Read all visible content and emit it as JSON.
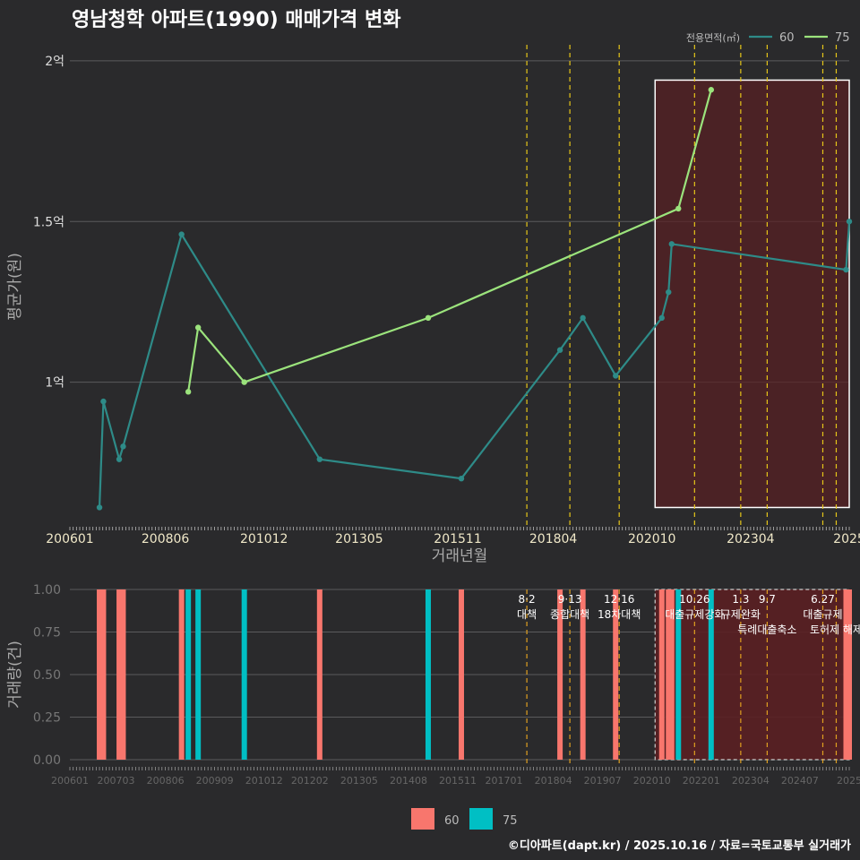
{
  "title": "영남청학 아파트(1990) 매매가격 변화",
  "credit": "©디아파트(dapt.kr) / 2025.10.16 / 자료=국토교통부 실거래가",
  "colors": {
    "bg": "#2a2a2c",
    "grid": "#5a5a5c",
    "series60": "#2e8b88",
    "series75": "#9be37c",
    "bar60": "#f8766d",
    "bar75": "#00bfc4",
    "policy": "#e6c619",
    "highlight_fill": "#5a1f22"
  },
  "chart_data": [
    {
      "type": "line",
      "title": "영남청학 아파트(1990) 매매가격 변화",
      "xlabel": "거래년월",
      "ylabel": "평균가(원)",
      "xlim": [
        2006.0,
        2025.75
      ],
      "ylim": [
        0.55,
        2.05
      ],
      "yticks": [
        {
          "v": 1.0,
          "label": "1억"
        },
        {
          "v": 1.5,
          "label": "1.5억"
        },
        {
          "v": 2.0,
          "label": "2억"
        }
      ],
      "xticks": [
        {
          "v": 2006.0,
          "label": "200601"
        },
        {
          "v": 2008.42,
          "label": "200806"
        },
        {
          "v": 2010.92,
          "label": "201012"
        },
        {
          "v": 2013.33,
          "label": "201305"
        },
        {
          "v": 2015.83,
          "label": "201511"
        },
        {
          "v": 2018.25,
          "label": "201804"
        },
        {
          "v": 2020.75,
          "label": "202010"
        },
        {
          "v": 2023.25,
          "label": "202304"
        },
        {
          "v": 2025.75,
          "label": "2025"
        }
      ],
      "legend_title": "전용면적(㎡)",
      "legend_position": "top-right",
      "series": [
        {
          "name": "60",
          "x": [
            2006.75,
            2006.85,
            2007.25,
            2007.35,
            2008.83,
            2012.33,
            2015.92,
            2018.42,
            2019.0,
            2019.83,
            2021.0,
            2021.17,
            2021.25,
            2025.67,
            2025.75
          ],
          "y": [
            0.61,
            0.94,
            0.76,
            0.8,
            1.46,
            0.76,
            0.7,
            1.1,
            1.2,
            1.02,
            1.2,
            1.28,
            1.43,
            1.35,
            1.5
          ]
        },
        {
          "name": "75",
          "x": [
            2009.0,
            2009.25,
            2010.42,
            2015.08,
            2021.42,
            2022.25
          ],
          "y": [
            0.97,
            1.17,
            1.0,
            1.2,
            1.54,
            1.91
          ]
        }
      ],
      "policy_lines_x": [
        2017.58,
        2018.67,
        2019.92,
        2021.83,
        2023.0,
        2023.67,
        2025.08,
        2025.42
      ],
      "highlight_range": {
        "x": [
          2020.83,
          2025.75
        ],
        "y": [
          0.61,
          1.94
        ]
      }
    },
    {
      "type": "bar",
      "xlabel": "",
      "ylabel": "거래량(건)",
      "xlim": [
        2006.0,
        2025.75
      ],
      "ylim": [
        0,
        1.0
      ],
      "yticks": [
        {
          "v": 0.0,
          "label": "0.00"
        },
        {
          "v": 0.25,
          "label": "0.25"
        },
        {
          "v": 0.5,
          "label": "0.50"
        },
        {
          "v": 0.75,
          "label": "0.75"
        },
        {
          "v": 1.0,
          "label": "1.00"
        }
      ],
      "xticks": [
        {
          "v": 2006.0,
          "label": "200601"
        },
        {
          "v": 2007.17,
          "label": "200703"
        },
        {
          "v": 2008.42,
          "label": "200806"
        },
        {
          "v": 2009.67,
          "label": "200909"
        },
        {
          "v": 2010.92,
          "label": "201012"
        },
        {
          "v": 2012.08,
          "label": "201202"
        },
        {
          "v": 2013.33,
          "label": "201305"
        },
        {
          "v": 2014.58,
          "label": "201408"
        },
        {
          "v": 2015.83,
          "label": "201511"
        },
        {
          "v": 2017.0,
          "label": "201701"
        },
        {
          "v": 2018.25,
          "label": "201804"
        },
        {
          "v": 2019.5,
          "label": "201907"
        },
        {
          "v": 2020.75,
          "label": "202010"
        },
        {
          "v": 2022.0,
          "label": "202201"
        },
        {
          "v": 2023.25,
          "label": "202304"
        },
        {
          "v": 2024.5,
          "label": "202407"
        },
        {
          "v": 2025.75,
          "label": "2025"
        }
      ],
      "series": [
        {
          "name": "60",
          "x": [
            2006.75,
            2006.85,
            2007.25,
            2007.35,
            2008.83,
            2012.33,
            2015.92,
            2018.42,
            2019.0,
            2019.83,
            2021.0,
            2021.17,
            2021.25,
            2025.67,
            2025.75
          ],
          "values": [
            1,
            1,
            1,
            1,
            1,
            1,
            1,
            1,
            1,
            1,
            1,
            1,
            1,
            1,
            1
          ]
        },
        {
          "name": "75",
          "x": [
            2009.0,
            2009.25,
            2010.42,
            2015.08,
            2021.42,
            2022.25
          ],
          "values": [
            1,
            1,
            1,
            1,
            1,
            1
          ]
        }
      ],
      "policy_lines_x": [
        2017.58,
        2018.67,
        2019.92,
        2021.83,
        2023.0,
        2023.67,
        2025.08,
        2025.42
      ],
      "policy_labels": [
        {
          "x": 2017.58,
          "date": "8·2",
          "name": "대책"
        },
        {
          "x": 2018.67,
          "date": "9·13",
          "name": "종합대책"
        },
        {
          "x": 2019.92,
          "date": "12·16",
          "name": "18차대책"
        },
        {
          "x": 2021.83,
          "date": "10.26",
          "name": "대출규제강화"
        },
        {
          "x": 2023.0,
          "date": "1.3",
          "name": "규제완화"
        },
        {
          "x": 2023.67,
          "date": "9.7",
          "name": "특례대출축소"
        },
        {
          "x": 2025.08,
          "date": "6.27",
          "name": "대출규제"
        },
        {
          "x": 2025.42,
          "date": "",
          "name": "토허제 해제"
        }
      ],
      "highlight_range": {
        "x": [
          2020.83,
          2025.75
        ],
        "y": [
          0,
          1.0
        ]
      },
      "legend_position": "bottom"
    }
  ]
}
